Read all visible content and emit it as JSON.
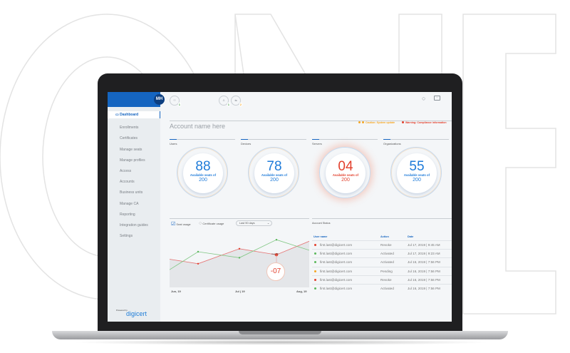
{
  "header": {
    "avatar": "MH",
    "icons": [
      {
        "name": "seats-icon",
        "badge": "1",
        "badge_color": "#43a047"
      },
      {
        "name": "certificate-icon",
        "badge": "1",
        "badge_color": "#43a047"
      },
      {
        "name": "order-icon",
        "badge": "2",
        "badge_color": "#f5a623"
      }
    ],
    "right_icons": [
      "search-icon",
      "chat-icon"
    ]
  },
  "sidebar": {
    "items": [
      "Dashboard",
      "Enrollments",
      "Certificates",
      "Manage seats",
      "Manage profiles",
      "Access",
      "Accounts",
      "Business units",
      "Manage CA",
      "Reporting",
      "Integration guides",
      "Settings"
    ],
    "powered_by": "Powered by",
    "brand": "digicert"
  },
  "account": {
    "name": "Account name here",
    "caution": "Caution: System update",
    "warning": "Warning: Compliance information",
    "caution_color": "#f5a623",
    "warning_color": "#e2402d"
  },
  "cards": [
    {
      "label": "Users",
      "value": "88",
      "sub": "Available seats of",
      "total": "200",
      "alert": false
    },
    {
      "label": "Devices",
      "value": "78",
      "sub": "Available seats of",
      "total": "200",
      "alert": false
    },
    {
      "label": "Servers",
      "value": "04",
      "sub": "Available seats of",
      "total": "200",
      "alert": true
    },
    {
      "label": "Organizations",
      "value": "55",
      "sub": "Available seats of",
      "total": "200",
      "alert": false
    }
  ],
  "chart": {
    "seat_usage": "Seat usage",
    "certificate_usage": "Certificate usage",
    "range": "Last 90 days",
    "callout_label": "Aug 08",
    "callout_value": "-07",
    "xticks": [
      "Jun, 19",
      "Jul | 19",
      "Aug, 19"
    ],
    "chart_data": {
      "type": "line",
      "series": [
        {
          "color": "#e57373",
          "values": [
            15,
            12,
            22,
            18,
            27
          ]
        },
        {
          "color": "#81c784",
          "values": [
            8,
            20,
            16,
            28,
            21
          ]
        }
      ]
    }
  },
  "table": {
    "title": "Account Status",
    "headers": [
      "User name",
      "Action",
      "Date"
    ],
    "rows": [
      {
        "status": "#e2402d",
        "user": "first.last@digicert.com",
        "action": "Revoke",
        "date": "Jul 17, 2019 | 9:45 AM"
      },
      {
        "status": "#5cb85c",
        "user": "first.last@digicert.com",
        "action": "Activated",
        "date": "Jul 17, 2019 | 9:23 AM"
      },
      {
        "status": "#5cb85c",
        "user": "first.last@digicert.com",
        "action": "Activated",
        "date": "Jul 16, 2019 | 7:56 PM"
      },
      {
        "status": "#f5a623",
        "user": "first.last@digicert.com",
        "action": "Pending",
        "date": "Jul 16, 2019 | 7:56 PM"
      },
      {
        "status": "#e2402d",
        "user": "first.last@digicert.com",
        "action": "Revoke",
        "date": "Jul 16, 2019 | 7:56 PM"
      },
      {
        "status": "#5cb85c",
        "user": "first.last@digicert.com",
        "action": "Activated",
        "date": "Jul 16, 2019 | 7:56 PM"
      }
    ]
  }
}
